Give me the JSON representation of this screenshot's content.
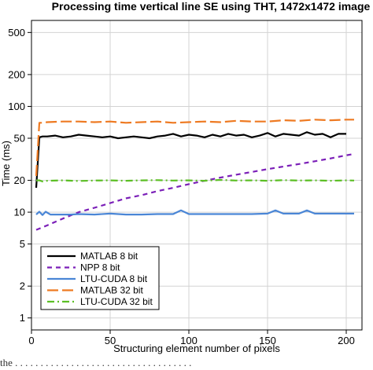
{
  "caption": "the . . . . . . . . . . . . . . . . . . . . . . . . . . . . . . . . . . .",
  "chart_data": {
    "type": "line",
    "title": "Processing time vertical line SE using THT, 1472x1472 image",
    "xlabel": "Structuring element number of pixels",
    "ylabel": "Time (ms)",
    "xlim": [
      0,
      210
    ],
    "ylim": [
      0.77,
      650
    ],
    "y_scale": "log",
    "grid": true,
    "x_ticks": [
      0,
      50,
      100,
      150,
      200
    ],
    "y_ticks": [
      1,
      2,
      5,
      10,
      20,
      50,
      100,
      200,
      500
    ],
    "legend_position": "bottom-left",
    "series": [
      {
        "name": "MATLAB 8 bit",
        "color": "#000000",
        "dash": "",
        "x": [
          3,
          5,
          7,
          10,
          15,
          20,
          25,
          30,
          35,
          40,
          45,
          50,
          55,
          60,
          65,
          70,
          75,
          80,
          85,
          90,
          95,
          100,
          105,
          110,
          115,
          120,
          125,
          130,
          135,
          140,
          145,
          150,
          155,
          160,
          165,
          170,
          175,
          180,
          185,
          190,
          195,
          200
        ],
        "values": [
          17,
          51,
          52,
          52,
          53,
          51,
          52,
          54,
          53,
          52,
          51,
          52,
          50,
          51,
          52,
          51,
          50,
          52,
          53,
          55,
          52,
          54,
          53,
          51,
          54,
          52,
          55,
          53,
          54,
          51,
          53,
          56,
          52,
          55,
          54,
          53,
          57,
          54,
          55,
          51,
          55,
          55
        ]
      },
      {
        "name": "NPP 8 bit",
        "color": "#7b1fb8",
        "dash": "6,5",
        "x": [
          3,
          10,
          20,
          30,
          40,
          50,
          60,
          70,
          80,
          90,
          100,
          110,
          120,
          130,
          140,
          150,
          160,
          170,
          180,
          190,
          200,
          205
        ],
        "values": [
          6.8,
          7.5,
          8.7,
          10.0,
          11.0,
          12.2,
          13.5,
          14.5,
          15.8,
          17.0,
          18.4,
          19.8,
          21.2,
          22.6,
          24.0,
          25.5,
          27.0,
          28.5,
          30.3,
          32.2,
          34.5,
          35.5
        ]
      },
      {
        "name": "LTU-CUDA 8 bit",
        "color": "#4a86d6",
        "dash": "",
        "x": [
          3,
          5,
          7,
          9,
          12,
          15,
          20,
          25,
          30,
          40,
          50,
          60,
          70,
          80,
          90,
          95,
          100,
          110,
          120,
          130,
          140,
          150,
          155,
          160,
          170,
          175,
          180,
          190,
          200,
          205
        ],
        "values": [
          9.5,
          10.1,
          9.4,
          10.1,
          9.5,
          9.5,
          9.5,
          9.5,
          9.6,
          9.5,
          9.7,
          9.5,
          9.5,
          9.6,
          9.6,
          10.4,
          9.6,
          9.6,
          9.6,
          9.6,
          9.6,
          9.7,
          10.4,
          9.7,
          9.7,
          10.4,
          9.7,
          9.7,
          9.7,
          9.7
        ]
      },
      {
        "name": "MATLAB 32 bit",
        "color": "#ee7a22",
        "dash": "14,5",
        "x": [
          3,
          5,
          7,
          10,
          20,
          30,
          40,
          50,
          60,
          70,
          80,
          90,
          100,
          110,
          120,
          130,
          140,
          150,
          160,
          170,
          180,
          190,
          200,
          205
        ],
        "values": [
          22,
          70,
          70,
          71,
          72,
          72,
          71,
          72,
          70,
          71,
          72,
          70,
          71,
          72,
          71,
          73,
          72,
          72,
          74,
          73,
          75,
          74,
          75,
          75
        ]
      },
      {
        "name": "LTU-CUDA 32 bit",
        "color": "#5cbf25",
        "dash": "9,4,2,4",
        "x": [
          3,
          5,
          7,
          10,
          20,
          30,
          40,
          50,
          60,
          70,
          80,
          90,
          100,
          110,
          120,
          130,
          140,
          150,
          160,
          170,
          180,
          190,
          200,
          205
        ],
        "values": [
          20,
          20,
          19.5,
          19.8,
          20,
          19.7,
          19.9,
          20,
          19.8,
          20,
          20.1,
          19.9,
          20,
          19.8,
          20.2,
          19.9,
          20,
          19.8,
          20.1,
          19.9,
          20,
          19.8,
          20,
          19.9
        ]
      }
    ]
  }
}
